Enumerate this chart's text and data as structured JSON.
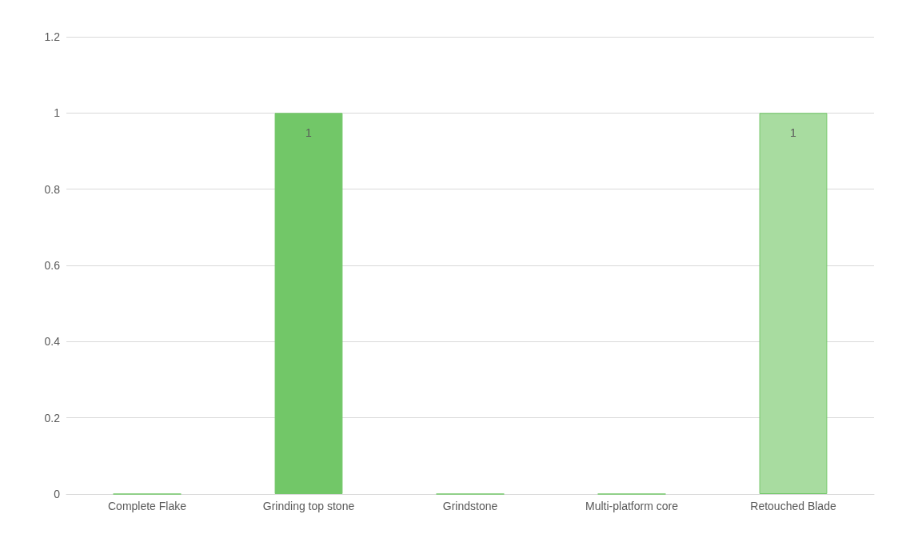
{
  "chart_data": {
    "type": "bar",
    "categories": [
      "Complete Flake",
      "Grinding top stone",
      "Grindstone",
      "Multi-platform core",
      "Retouched Blade"
    ],
    "values": [
      0,
      1,
      0,
      0,
      1
    ],
    "colors": [
      "#72c768",
      "#72c768",
      "#72c768",
      "#72c768",
      "#a8dca0"
    ],
    "value_labels": [
      null,
      "1",
      null,
      null,
      "1"
    ],
    "ylim": [
      0,
      1.2
    ],
    "yticks": [
      0,
      0.2,
      0.4,
      0.6,
      0.8,
      1,
      1.2
    ],
    "grid": "y"
  }
}
